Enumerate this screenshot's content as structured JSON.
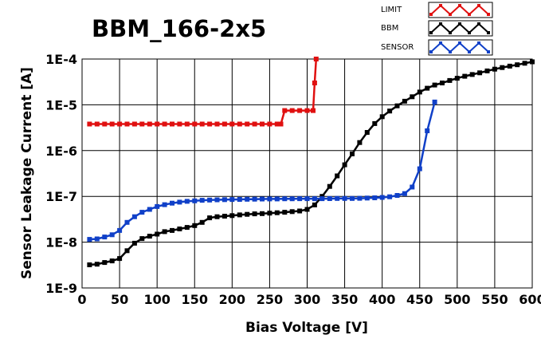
{
  "chart_data": {
    "type": "line",
    "title": "BBM_166-2x5",
    "xlabel": "Bias Voltage [V]",
    "ylabel": "Sensor Leakage Current [A]",
    "x_scale": "linear",
    "y_scale": "log",
    "xlim": [
      0,
      600
    ],
    "ylim": [
      1e-09,
      0.0001
    ],
    "x_ticks": [
      "0",
      "50",
      "100",
      "150",
      "200",
      "250",
      "300",
      "350",
      "400",
      "450",
      "500",
      "550",
      "600"
    ],
    "x_tick_values": [
      0,
      50,
      100,
      150,
      200,
      250,
      300,
      350,
      400,
      450,
      500,
      550,
      600
    ],
    "y_ticks": [
      "1E-9",
      "1E-8",
      "1E-7",
      "1E-6",
      "1E-5",
      "1E-4"
    ],
    "y_tick_values": [
      1e-09,
      1e-08,
      1e-07,
      1e-06,
      1e-05,
      0.0001
    ],
    "grid": true,
    "legend_position": "top-right",
    "series": [
      {
        "name": "LIMIT",
        "color": "#e01010",
        "x": [
          10,
          20,
          30,
          40,
          50,
          60,
          70,
          80,
          90,
          100,
          110,
          120,
          130,
          140,
          150,
          160,
          170,
          180,
          190,
          200,
          210,
          220,
          230,
          240,
          250,
          260,
          265,
          270,
          280,
          290,
          300,
          308,
          310,
          312
        ],
        "y": [
          3.8e-06,
          3.8e-06,
          3.8e-06,
          3.8e-06,
          3.8e-06,
          3.8e-06,
          3.8e-06,
          3.8e-06,
          3.8e-06,
          3.8e-06,
          3.8e-06,
          3.8e-06,
          3.8e-06,
          3.8e-06,
          3.8e-06,
          3.8e-06,
          3.8e-06,
          3.8e-06,
          3.8e-06,
          3.8e-06,
          3.8e-06,
          3.8e-06,
          3.8e-06,
          3.8e-06,
          3.8e-06,
          3.8e-06,
          3.8e-06,
          7.5e-06,
          7.5e-06,
          7.5e-06,
          7.5e-06,
          7.5e-06,
          3e-05,
          0.0001
        ]
      },
      {
        "name": "BBM",
        "color": "#000000",
        "x": [
          10,
          20,
          30,
          40,
          50,
          60,
          70,
          80,
          90,
          100,
          110,
          120,
          130,
          140,
          150,
          160,
          170,
          180,
          190,
          200,
          210,
          220,
          230,
          240,
          250,
          260,
          270,
          280,
          290,
          300,
          310,
          320,
          330,
          340,
          350,
          360,
          370,
          380,
          390,
          400,
          410,
          420,
          430,
          440,
          450,
          460,
          470,
          480,
          490,
          500,
          510,
          520,
          530,
          540,
          550,
          560,
          570,
          580,
          590,
          600
        ],
        "y": [
          3.2e-09,
          3.3e-09,
          3.6e-09,
          3.9e-09,
          4.4e-09,
          6.5e-09,
          9.5e-09,
          1.2e-08,
          1.35e-08,
          1.5e-08,
          1.7e-08,
          1.8e-08,
          1.95e-08,
          2.1e-08,
          2.3e-08,
          2.7e-08,
          3.4e-08,
          3.6e-08,
          3.7e-08,
          3.8e-08,
          3.95e-08,
          4.05e-08,
          4.15e-08,
          4.2e-08,
          4.3e-08,
          4.4e-08,
          4.5e-08,
          4.65e-08,
          4.8e-08,
          5.2e-08,
          6.5e-08,
          1e-07,
          1.65e-07,
          2.8e-07,
          4.9e-07,
          8.5e-07,
          1.5e-06,
          2.5e-06,
          3.9e-06,
          5.5e-06,
          7.3e-06,
          9.5e-06,
          1.2e-05,
          1.5e-05,
          1.9e-05,
          2.3e-05,
          2.7e-05,
          3e-05,
          3.4e-05,
          3.8e-05,
          4.2e-05,
          4.6e-05,
          5e-05,
          5.5e-05,
          6e-05,
          6.5e-05,
          7e-05,
          7.5e-05,
          8.1e-05,
          8.7e-05
        ]
      },
      {
        "name": "SENSOR",
        "color": "#1040c8",
        "x": [
          10,
          20,
          30,
          40,
          50,
          60,
          70,
          80,
          90,
          100,
          110,
          120,
          130,
          140,
          150,
          160,
          170,
          180,
          190,
          200,
          210,
          220,
          230,
          240,
          250,
          260,
          270,
          280,
          290,
          300,
          310,
          320,
          330,
          340,
          350,
          360,
          370,
          380,
          390,
          400,
          410,
          420,
          430,
          440,
          450,
          460,
          470
        ],
        "y": [
          1.15e-08,
          1.18e-08,
          1.3e-08,
          1.45e-08,
          1.8e-08,
          2.7e-08,
          3.6e-08,
          4.5e-08,
          5.2e-08,
          6e-08,
          6.6e-08,
          7.1e-08,
          7.5e-08,
          7.8e-08,
          8e-08,
          8.2e-08,
          8.3e-08,
          8.4e-08,
          8.5e-08,
          8.55e-08,
          8.6e-08,
          8.65e-08,
          8.7e-08,
          8.75e-08,
          8.8e-08,
          8.8e-08,
          8.85e-08,
          8.85e-08,
          8.9e-08,
          8.9e-08,
          8.9e-08,
          8.9e-08,
          8.95e-08,
          9e-08,
          9e-08,
          9e-08,
          9.1e-08,
          9.2e-08,
          9.3e-08,
          9.5e-08,
          9.8e-08,
          1.05e-07,
          1.15e-07,
          1.6e-07,
          4e-07,
          2.7e-06,
          1.15e-05
        ]
      }
    ]
  }
}
